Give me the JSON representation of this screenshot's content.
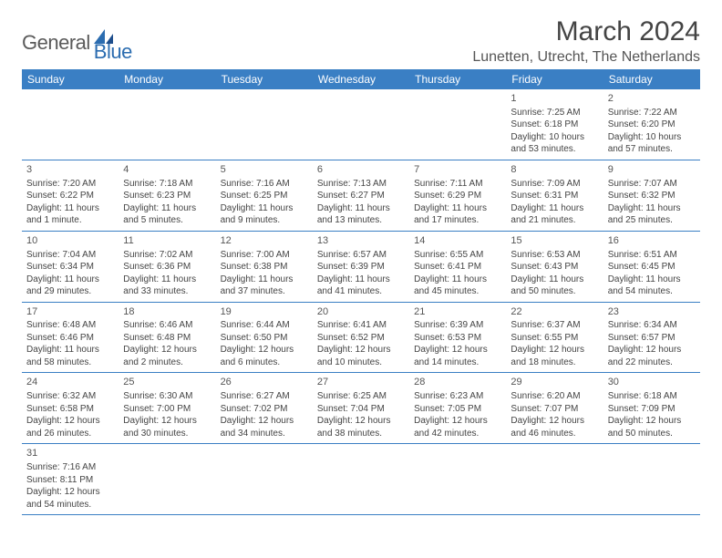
{
  "logo": {
    "text1": "General",
    "text2": "Blue"
  },
  "title": "March 2024",
  "location": "Lunetten, Utrecht, The Netherlands",
  "colors": {
    "header_bg": "#3a7fc4",
    "header_fg": "#ffffff",
    "logo_gray": "#5a5a5a",
    "logo_blue": "#2b6cb0",
    "text": "#444444",
    "border": "#3a7fc4"
  },
  "dayHeaders": [
    "Sunday",
    "Monday",
    "Tuesday",
    "Wednesday",
    "Thursday",
    "Friday",
    "Saturday"
  ],
  "weeks": [
    [
      null,
      null,
      null,
      null,
      null,
      {
        "n": "1",
        "sr": "Sunrise: 7:25 AM",
        "ss": "Sunset: 6:18 PM",
        "dl1": "Daylight: 10 hours",
        "dl2": "and 53 minutes."
      },
      {
        "n": "2",
        "sr": "Sunrise: 7:22 AM",
        "ss": "Sunset: 6:20 PM",
        "dl1": "Daylight: 10 hours",
        "dl2": "and 57 minutes."
      }
    ],
    [
      {
        "n": "3",
        "sr": "Sunrise: 7:20 AM",
        "ss": "Sunset: 6:22 PM",
        "dl1": "Daylight: 11 hours",
        "dl2": "and 1 minute."
      },
      {
        "n": "4",
        "sr": "Sunrise: 7:18 AM",
        "ss": "Sunset: 6:23 PM",
        "dl1": "Daylight: 11 hours",
        "dl2": "and 5 minutes."
      },
      {
        "n": "5",
        "sr": "Sunrise: 7:16 AM",
        "ss": "Sunset: 6:25 PM",
        "dl1": "Daylight: 11 hours",
        "dl2": "and 9 minutes."
      },
      {
        "n": "6",
        "sr": "Sunrise: 7:13 AM",
        "ss": "Sunset: 6:27 PM",
        "dl1": "Daylight: 11 hours",
        "dl2": "and 13 minutes."
      },
      {
        "n": "7",
        "sr": "Sunrise: 7:11 AM",
        "ss": "Sunset: 6:29 PM",
        "dl1": "Daylight: 11 hours",
        "dl2": "and 17 minutes."
      },
      {
        "n": "8",
        "sr": "Sunrise: 7:09 AM",
        "ss": "Sunset: 6:31 PM",
        "dl1": "Daylight: 11 hours",
        "dl2": "and 21 minutes."
      },
      {
        "n": "9",
        "sr": "Sunrise: 7:07 AM",
        "ss": "Sunset: 6:32 PM",
        "dl1": "Daylight: 11 hours",
        "dl2": "and 25 minutes."
      }
    ],
    [
      {
        "n": "10",
        "sr": "Sunrise: 7:04 AM",
        "ss": "Sunset: 6:34 PM",
        "dl1": "Daylight: 11 hours",
        "dl2": "and 29 minutes."
      },
      {
        "n": "11",
        "sr": "Sunrise: 7:02 AM",
        "ss": "Sunset: 6:36 PM",
        "dl1": "Daylight: 11 hours",
        "dl2": "and 33 minutes."
      },
      {
        "n": "12",
        "sr": "Sunrise: 7:00 AM",
        "ss": "Sunset: 6:38 PM",
        "dl1": "Daylight: 11 hours",
        "dl2": "and 37 minutes."
      },
      {
        "n": "13",
        "sr": "Sunrise: 6:57 AM",
        "ss": "Sunset: 6:39 PM",
        "dl1": "Daylight: 11 hours",
        "dl2": "and 41 minutes."
      },
      {
        "n": "14",
        "sr": "Sunrise: 6:55 AM",
        "ss": "Sunset: 6:41 PM",
        "dl1": "Daylight: 11 hours",
        "dl2": "and 45 minutes."
      },
      {
        "n": "15",
        "sr": "Sunrise: 6:53 AM",
        "ss": "Sunset: 6:43 PM",
        "dl1": "Daylight: 11 hours",
        "dl2": "and 50 minutes."
      },
      {
        "n": "16",
        "sr": "Sunrise: 6:51 AM",
        "ss": "Sunset: 6:45 PM",
        "dl1": "Daylight: 11 hours",
        "dl2": "and 54 minutes."
      }
    ],
    [
      {
        "n": "17",
        "sr": "Sunrise: 6:48 AM",
        "ss": "Sunset: 6:46 PM",
        "dl1": "Daylight: 11 hours",
        "dl2": "and 58 minutes."
      },
      {
        "n": "18",
        "sr": "Sunrise: 6:46 AM",
        "ss": "Sunset: 6:48 PM",
        "dl1": "Daylight: 12 hours",
        "dl2": "and 2 minutes."
      },
      {
        "n": "19",
        "sr": "Sunrise: 6:44 AM",
        "ss": "Sunset: 6:50 PM",
        "dl1": "Daylight: 12 hours",
        "dl2": "and 6 minutes."
      },
      {
        "n": "20",
        "sr": "Sunrise: 6:41 AM",
        "ss": "Sunset: 6:52 PM",
        "dl1": "Daylight: 12 hours",
        "dl2": "and 10 minutes."
      },
      {
        "n": "21",
        "sr": "Sunrise: 6:39 AM",
        "ss": "Sunset: 6:53 PM",
        "dl1": "Daylight: 12 hours",
        "dl2": "and 14 minutes."
      },
      {
        "n": "22",
        "sr": "Sunrise: 6:37 AM",
        "ss": "Sunset: 6:55 PM",
        "dl1": "Daylight: 12 hours",
        "dl2": "and 18 minutes."
      },
      {
        "n": "23",
        "sr": "Sunrise: 6:34 AM",
        "ss": "Sunset: 6:57 PM",
        "dl1": "Daylight: 12 hours",
        "dl2": "and 22 minutes."
      }
    ],
    [
      {
        "n": "24",
        "sr": "Sunrise: 6:32 AM",
        "ss": "Sunset: 6:58 PM",
        "dl1": "Daylight: 12 hours",
        "dl2": "and 26 minutes."
      },
      {
        "n": "25",
        "sr": "Sunrise: 6:30 AM",
        "ss": "Sunset: 7:00 PM",
        "dl1": "Daylight: 12 hours",
        "dl2": "and 30 minutes."
      },
      {
        "n": "26",
        "sr": "Sunrise: 6:27 AM",
        "ss": "Sunset: 7:02 PM",
        "dl1": "Daylight: 12 hours",
        "dl2": "and 34 minutes."
      },
      {
        "n": "27",
        "sr": "Sunrise: 6:25 AM",
        "ss": "Sunset: 7:04 PM",
        "dl1": "Daylight: 12 hours",
        "dl2": "and 38 minutes."
      },
      {
        "n": "28",
        "sr": "Sunrise: 6:23 AM",
        "ss": "Sunset: 7:05 PM",
        "dl1": "Daylight: 12 hours",
        "dl2": "and 42 minutes."
      },
      {
        "n": "29",
        "sr": "Sunrise: 6:20 AM",
        "ss": "Sunset: 7:07 PM",
        "dl1": "Daylight: 12 hours",
        "dl2": "and 46 minutes."
      },
      {
        "n": "30",
        "sr": "Sunrise: 6:18 AM",
        "ss": "Sunset: 7:09 PM",
        "dl1": "Daylight: 12 hours",
        "dl2": "and 50 minutes."
      }
    ],
    [
      {
        "n": "31",
        "sr": "Sunrise: 7:16 AM",
        "ss": "Sunset: 8:11 PM",
        "dl1": "Daylight: 12 hours",
        "dl2": "and 54 minutes."
      },
      null,
      null,
      null,
      null,
      null,
      null
    ]
  ]
}
